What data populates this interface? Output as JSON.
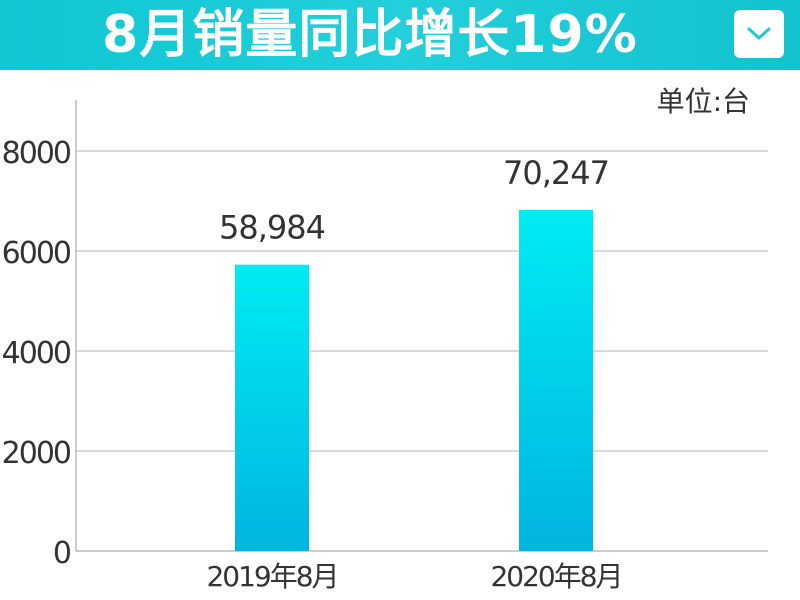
{
  "header": {
    "title": "8月销量同比增长19%",
    "dropdown_icon": "chevron-down-icon"
  },
  "unit": "单位:台",
  "colors": {
    "banner": "#1ccad6",
    "bar_top": "#00e8f0",
    "bar_bottom": "#00b8e0",
    "grid": "#b0b0b0"
  },
  "chart_data": {
    "type": "bar",
    "categories": [
      "2019年8月",
      "2020年8月"
    ],
    "values": [
      58984,
      70247
    ],
    "value_labels": [
      "58,984",
      "70,247"
    ],
    "yticks": [
      "0",
      "2000",
      "4000",
      "6000",
      "8000"
    ],
    "ylim": [
      0,
      9000
    ],
    "grid": true
  }
}
